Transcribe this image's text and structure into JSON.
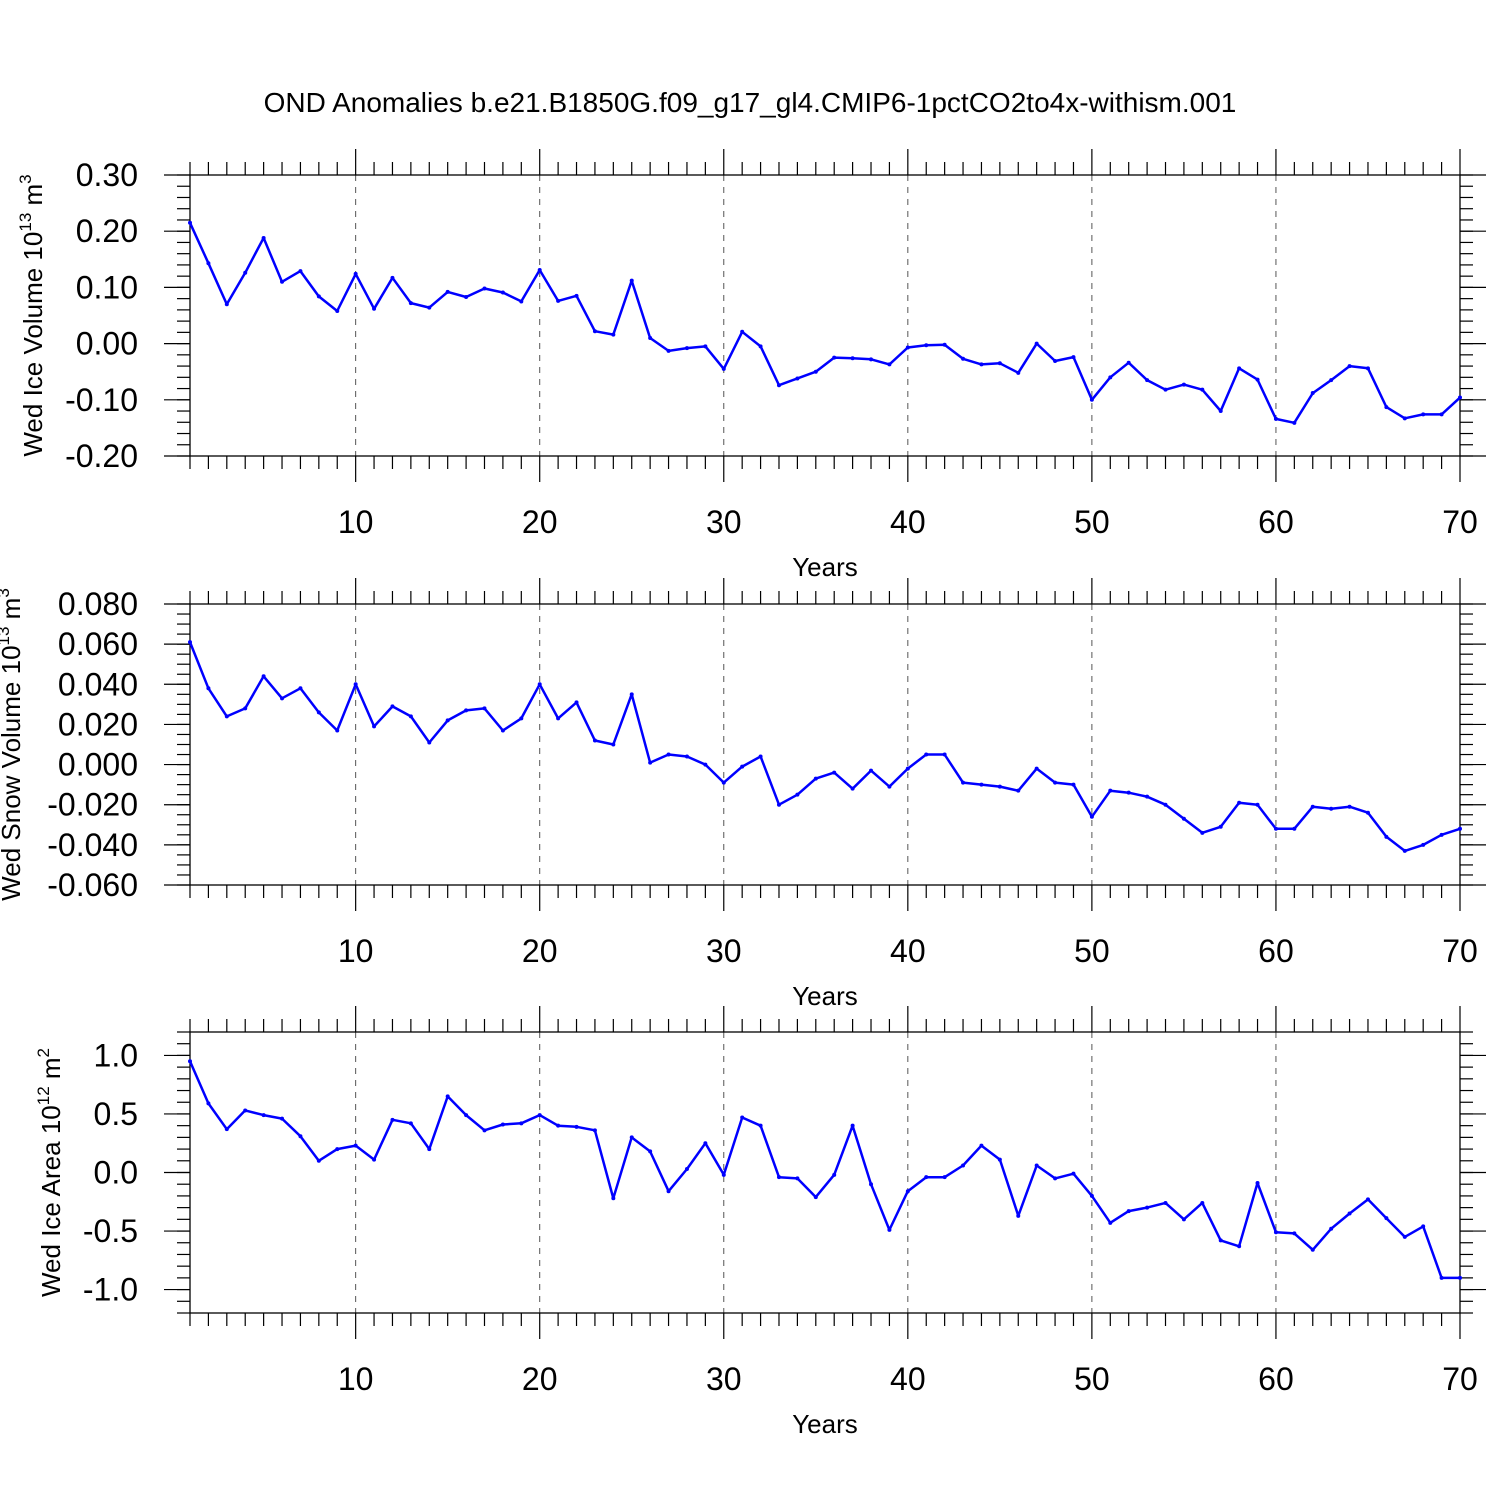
{
  "title": "OND Anomalies b.e21.B1850G.f09_g17_gl4.CMIP6-1pctCO2to4x-withism.001",
  "colors": {
    "line": "#0000ff",
    "axis": "#000000",
    "grid": "#555555"
  },
  "chart_data": [
    {
      "type": "line",
      "title": "OND Anomalies b.e21.B1850G.f09_g17_gl4.CMIP6-1pctCO2to4x-withism.001",
      "xlabel": "Years",
      "ylabel_parts": [
        "Wed Ice Volume 10",
        "13",
        " m",
        "3"
      ],
      "xlim": [
        1,
        70
      ],
      "ylim": [
        -0.2,
        0.3
      ],
      "xticks": [
        10,
        20,
        30,
        40,
        50,
        60,
        70
      ],
      "xtick_labels": [
        "10",
        "20",
        "30",
        "40",
        "50",
        "60",
        "70"
      ],
      "yticks": [
        -0.2,
        -0.1,
        0.0,
        0.1,
        0.2,
        0.3
      ],
      "ytick_labels": [
        "-0.20",
        "-0.10",
        "0.00",
        "0.10",
        "0.20",
        "0.30"
      ],
      "yminor_step": 0.02,
      "grid": "vertical dashed at major x ticks",
      "series": [
        {
          "name": "Wed Ice Volume",
          "x_start": 1,
          "values": [
            0.215,
            0.143,
            0.07,
            0.126,
            0.188,
            0.11,
            0.129,
            0.084,
            0.058,
            0.124,
            0.062,
            0.117,
            0.072,
            0.064,
            0.092,
            0.083,
            0.098,
            0.091,
            0.075,
            0.131,
            0.076,
            0.085,
            0.022,
            0.016,
            0.112,
            0.01,
            -0.013,
            -0.008,
            -0.005,
            -0.045,
            0.021,
            -0.005,
            -0.074,
            -0.062,
            -0.05,
            -0.025,
            -0.026,
            -0.028,
            -0.037,
            -0.007,
            -0.003,
            -0.002,
            -0.027,
            -0.037,
            -0.035,
            -0.052,
            0.0,
            -0.031,
            -0.024,
            -0.1,
            -0.06,
            -0.034,
            -0.065,
            -0.082,
            -0.073,
            -0.082,
            -0.12,
            -0.044,
            -0.064,
            -0.134,
            -0.141,
            -0.088,
            -0.065,
            -0.04,
            -0.044,
            -0.113,
            -0.133,
            -0.126,
            -0.126,
            -0.096
          ]
        }
      ]
    },
    {
      "type": "line",
      "xlabel": "Years",
      "ylabel_parts": [
        "Wed Snow Volume 10",
        "13",
        " m",
        "3"
      ],
      "xlim": [
        1,
        70
      ],
      "ylim": [
        -0.06,
        0.08
      ],
      "xticks": [
        10,
        20,
        30,
        40,
        50,
        60,
        70
      ],
      "xtick_labels": [
        "10",
        "20",
        "30",
        "40",
        "50",
        "60",
        "70"
      ],
      "yticks": [
        -0.06,
        -0.04,
        -0.02,
        0.0,
        0.02,
        0.04,
        0.06,
        0.08
      ],
      "ytick_labels": [
        "-0.060",
        "-0.040",
        "-0.020",
        "0.000",
        "0.020",
        "0.040",
        "0.060",
        "0.080"
      ],
      "yminor_step": 0.005,
      "grid": "vertical dashed at major x ticks",
      "series": [
        {
          "name": "Wed Snow Volume",
          "x_start": 1,
          "values": [
            0.061,
            0.038,
            0.024,
            0.028,
            0.044,
            0.033,
            0.038,
            0.026,
            0.017,
            0.04,
            0.019,
            0.029,
            0.024,
            0.011,
            0.022,
            0.027,
            0.028,
            0.017,
            0.023,
            0.04,
            0.023,
            0.031,
            0.012,
            0.01,
            0.035,
            0.001,
            0.005,
            0.004,
            0.0,
            -0.009,
            -0.001,
            0.004,
            -0.02,
            -0.015,
            -0.007,
            -0.004,
            -0.012,
            -0.003,
            -0.011,
            -0.002,
            0.005,
            0.005,
            -0.009,
            -0.01,
            -0.011,
            -0.013,
            -0.002,
            -0.009,
            -0.01,
            -0.026,
            -0.013,
            -0.014,
            -0.016,
            -0.02,
            -0.027,
            -0.034,
            -0.031,
            -0.019,
            -0.02,
            -0.032,
            -0.032,
            -0.021,
            -0.022,
            -0.021,
            -0.024,
            -0.036,
            -0.043,
            -0.04,
            -0.035,
            -0.032
          ]
        }
      ]
    },
    {
      "type": "line",
      "xlabel": "Years",
      "ylabel_parts": [
        "Wed Ice Area 10",
        "12",
        " m",
        "2"
      ],
      "xlim": [
        1,
        70
      ],
      "ylim": [
        -1.2,
        1.2
      ],
      "xticks": [
        10,
        20,
        30,
        40,
        50,
        60,
        70
      ],
      "xtick_labels": [
        "10",
        "20",
        "30",
        "40",
        "50",
        "60",
        "70"
      ],
      "yticks": [
        -1.0,
        -0.5,
        0.0,
        0.5,
        1.0
      ],
      "ytick_labels": [
        "-1.0",
        "-0.5",
        "0.0",
        "0.5",
        "1.0"
      ],
      "yminor_step": 0.1,
      "grid": "vertical dashed at major x ticks",
      "series": [
        {
          "name": "Wed Ice Area",
          "x_start": 1,
          "values": [
            0.95,
            0.59,
            0.37,
            0.53,
            0.49,
            0.46,
            0.31,
            0.1,
            0.2,
            0.23,
            0.11,
            0.45,
            0.42,
            0.2,
            0.65,
            0.49,
            0.36,
            0.41,
            0.42,
            0.49,
            0.4,
            0.39,
            0.36,
            -0.22,
            0.3,
            0.18,
            -0.16,
            0.03,
            0.25,
            -0.02,
            0.47,
            0.4,
            -0.04,
            -0.05,
            -0.21,
            -0.02,
            0.4,
            -0.1,
            -0.49,
            -0.16,
            -0.04,
            -0.04,
            0.06,
            0.23,
            0.11,
            -0.37,
            0.06,
            -0.05,
            -0.01,
            -0.2,
            -0.43,
            -0.33,
            -0.3,
            -0.26,
            -0.4,
            -0.26,
            -0.58,
            -0.63,
            -0.09,
            -0.51,
            -0.52,
            -0.66,
            -0.48,
            -0.35,
            -0.23,
            -0.39,
            -0.55,
            -0.46,
            -0.9,
            -0.9
          ]
        }
      ]
    }
  ]
}
